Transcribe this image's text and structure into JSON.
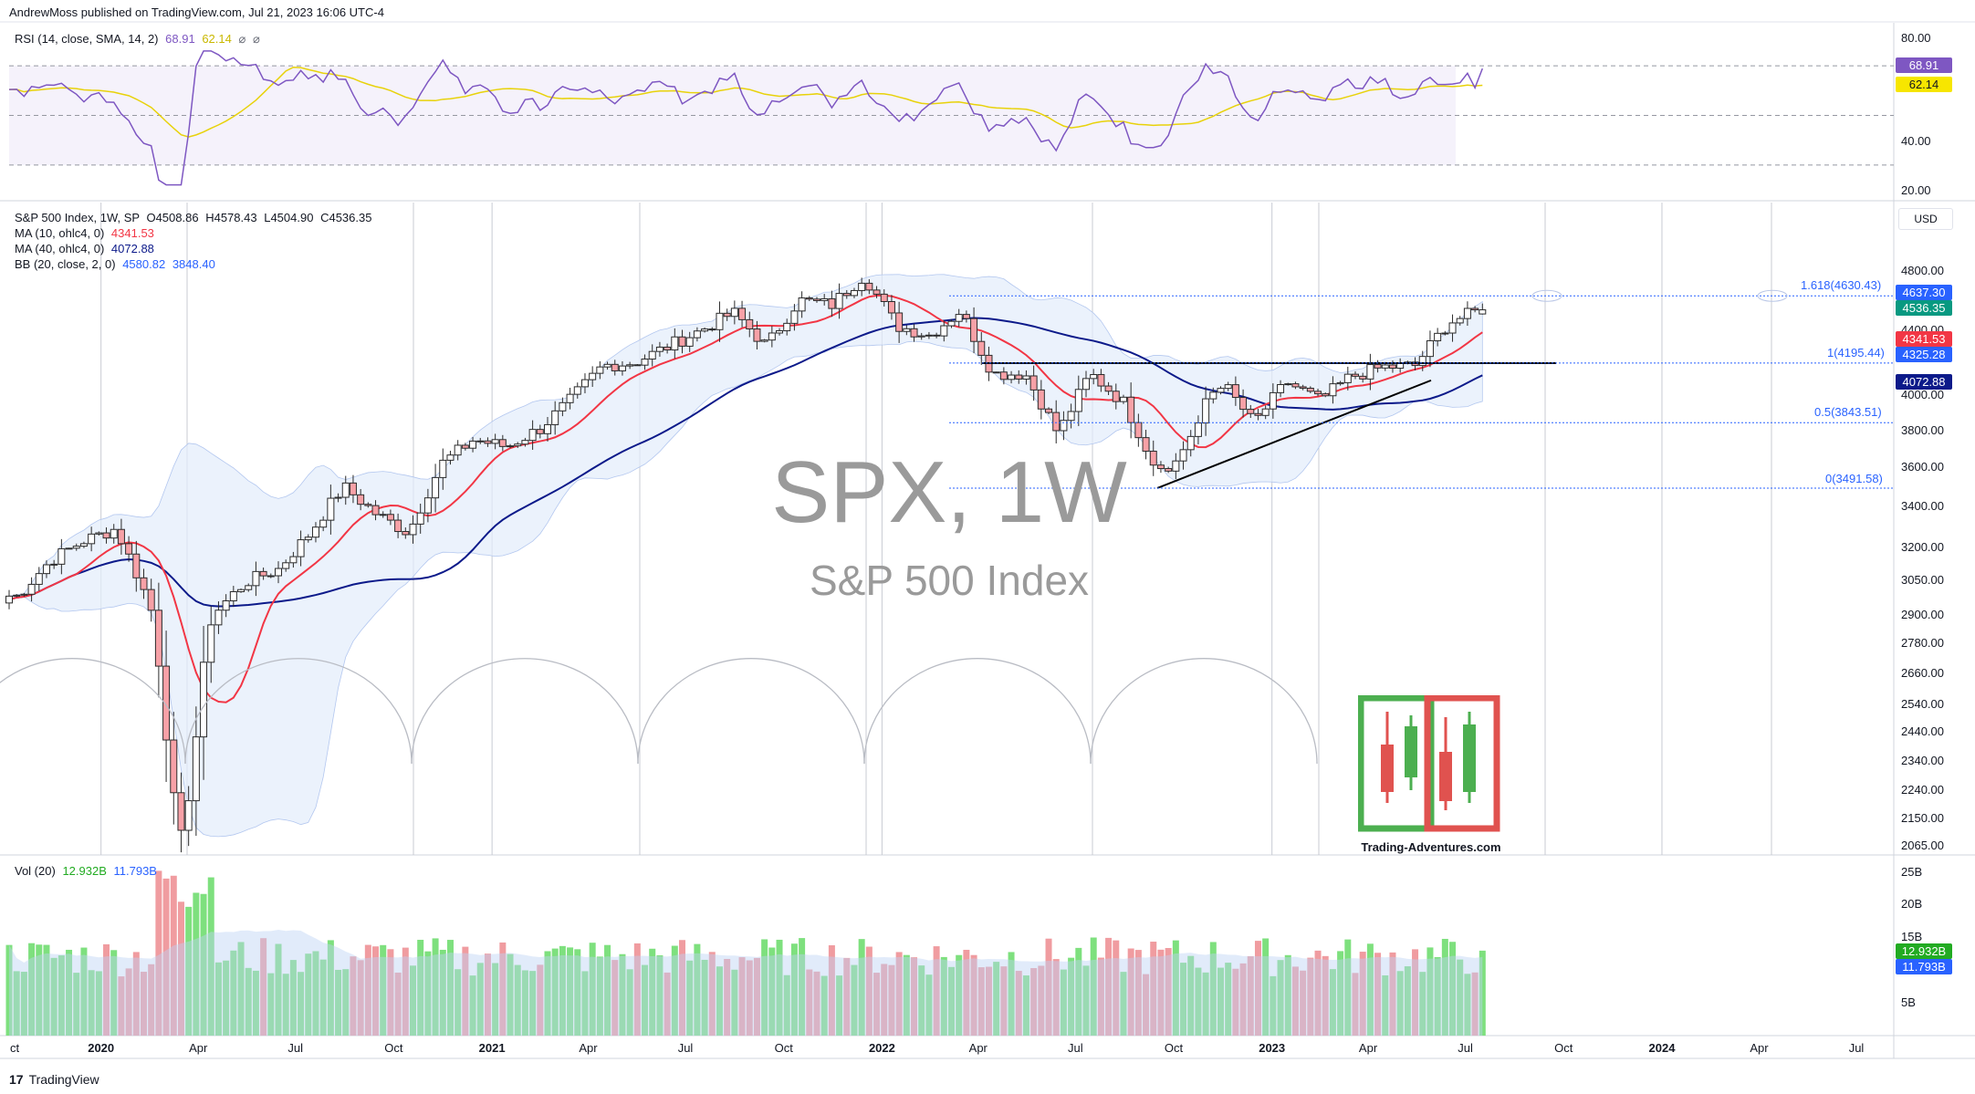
{
  "header": {
    "published_by": "AndrewMoss published on TradingView.com, Jul 21, 2023 16:06 UTC-4"
  },
  "rsi_panel": {
    "label": "RSI (14, close, SMA, 14, 2)",
    "rsi_value": "68.91",
    "sma_value": "62.14",
    "icons": [
      "eye-off-icon",
      "eye-off-icon"
    ],
    "axis_labels": [
      "80.00",
      "40.00",
      "20.00"
    ],
    "tag_rsi": "68.91",
    "tag_sma": "62.14"
  },
  "price_panel": {
    "symbol_line": "S&P 500 Index, 1W, SP",
    "open": "O4508.86",
    "high": "H4578.43",
    "low": "L4504.90",
    "close": "C4536.35",
    "ma10_label": "MA (10, ohlc4, 0)",
    "ma10_value": "4341.53",
    "ma40_label": "MA (40, ohlc4, 0)",
    "ma40_value": "4072.88",
    "bb_label": "BB (20, close, 2, 0)",
    "bb_upper": "4580.82",
    "bb_lower": "3848.40",
    "currency": "USD",
    "axis_labels": [
      "4800.00",
      "4400.00",
      "4000.00",
      "3800.00",
      "3600.00",
      "3400.00",
      "3200.00",
      "3050.00",
      "2900.00",
      "2780.00",
      "2660.00",
      "2540.00",
      "2440.00",
      "2340.00",
      "2240.00",
      "2150.00",
      "2065.00"
    ],
    "tags": [
      {
        "text": "4637.30",
        "color": "#2962ff"
      },
      {
        "text": "4536.35",
        "color": "#089981"
      },
      {
        "text": "4341.53",
        "color": "#f23645"
      },
      {
        "text": "4325.28",
        "color": "#2962ff"
      },
      {
        "text": "4072.88",
        "color": "#0c1a8a"
      }
    ],
    "fib_levels": [
      {
        "label": "1.618(4630.43)",
        "price": 4630.43
      },
      {
        "label": "1(4195.44)",
        "price": 4195.44
      },
      {
        "label": "0.5(3843.51)",
        "price": 3843.51
      },
      {
        "label": "0(3491.58)",
        "price": 3491.58
      }
    ],
    "watermark_title": "SPX, 1W",
    "watermark_subtitle": "S&P 500 Index",
    "logo_caption": "Trading-Adventures.com"
  },
  "volume_panel": {
    "label": "Vol (20)",
    "vol_value": "12.932B",
    "vol_ma_value": "11.793B",
    "axis_labels": [
      "25B",
      "20B",
      "15B",
      "5B"
    ],
    "tag_vol": "12.932B",
    "tag_ma": "11.793B"
  },
  "x_axis": {
    "labels": [
      {
        "text": "ct",
        "year": false
      },
      {
        "text": "2020",
        "year": true
      },
      {
        "text": "Apr",
        "year": false
      },
      {
        "text": "Jul",
        "year": false
      },
      {
        "text": "Oct",
        "year": false
      },
      {
        "text": "2021",
        "year": true
      },
      {
        "text": "Apr",
        "year": false
      },
      {
        "text": "Jul",
        "year": false
      },
      {
        "text": "Oct",
        "year": false
      },
      {
        "text": "2022",
        "year": true
      },
      {
        "text": "Apr",
        "year": false
      },
      {
        "text": "Jul",
        "year": false
      },
      {
        "text": "Oct",
        "year": false
      },
      {
        "text": "2023",
        "year": true
      },
      {
        "text": "Apr",
        "year": false
      },
      {
        "text": "Jul",
        "year": false
      },
      {
        "text": "Oct",
        "year": false
      },
      {
        "text": "2024",
        "year": true
      },
      {
        "text": "Apr",
        "year": false
      },
      {
        "text": "Jul",
        "year": false
      }
    ]
  },
  "footer": {
    "brand": "TradingView"
  },
  "colors": {
    "up": "#089981",
    "down": "#f23645",
    "ma10": "#f23645",
    "ma40": "#0c1a8a",
    "rsi": "#7e57c2",
    "rsi_sma": "#f7e600",
    "vol_up": "#7ee07e",
    "vol_down": "#f09ca0"
  },
  "chart_data": {
    "type": "candlestick",
    "title": "S&P 500 Index, 1W, SP",
    "price_scale": "log",
    "ylim": [
      2065,
      4900
    ],
    "x_start": "2019-10-07",
    "x_end": "2024-08-05",
    "series": [
      {
        "name": "MA (10, ohlc4, 0)",
        "last": 4341.53
      },
      {
        "name": "MA (40, ohlc4, 0)",
        "last": 4072.88
      },
      {
        "name": "BB (20, close, 2, 0)",
        "upper": 4580.82,
        "lower": 3848.4
      }
    ],
    "closes_by_month": [
      {
        "date": "2019-10",
        "close": 2980
      },
      {
        "date": "2019-11",
        "close": 3140
      },
      {
        "date": "2019-12",
        "close": 3230
      },
      {
        "date": "2020-01",
        "close": 3290
      },
      {
        "date": "2020-02",
        "close": 2950
      },
      {
        "date": "2020-03",
        "close": 2500
      },
      {
        "date": "2020-04",
        "close": 2900
      },
      {
        "date": "2020-05",
        "close": 3040
      },
      {
        "date": "2020-06",
        "close": 3100
      },
      {
        "date": "2020-07",
        "close": 3270
      },
      {
        "date": "2020-08",
        "close": 3500
      },
      {
        "date": "2020-09",
        "close": 3360
      },
      {
        "date": "2020-10",
        "close": 3270
      },
      {
        "date": "2020-11",
        "close": 3620
      },
      {
        "date": "2020-12",
        "close": 3750
      },
      {
        "date": "2021-01",
        "close": 3710
      },
      {
        "date": "2021-02",
        "close": 3810
      },
      {
        "date": "2021-03",
        "close": 3970
      },
      {
        "date": "2021-04",
        "close": 4180
      },
      {
        "date": "2021-05",
        "close": 4200
      },
      {
        "date": "2021-06",
        "close": 4300
      },
      {
        "date": "2021-07",
        "close": 4400
      },
      {
        "date": "2021-08",
        "close": 4520
      },
      {
        "date": "2021-09",
        "close": 4300
      },
      {
        "date": "2021-10",
        "close": 4600
      },
      {
        "date": "2021-11",
        "close": 4570
      },
      {
        "date": "2021-12",
        "close": 4770
      },
      {
        "date": "2022-01",
        "close": 4430
      },
      {
        "date": "2022-02",
        "close": 4370
      },
      {
        "date": "2022-03",
        "close": 4530
      },
      {
        "date": "2022-04",
        "close": 4130
      },
      {
        "date": "2022-05",
        "close": 4130
      },
      {
        "date": "2022-06",
        "close": 3780
      },
      {
        "date": "2022-07",
        "close": 4130
      },
      {
        "date": "2022-08",
        "close": 3960
      },
      {
        "date": "2022-09",
        "close": 3590
      },
      {
        "date": "2022-10",
        "close": 3870
      },
      {
        "date": "2022-11",
        "close": 4080
      },
      {
        "date": "2022-12",
        "close": 3840
      },
      {
        "date": "2023-01",
        "close": 4080
      },
      {
        "date": "2023-02",
        "close": 3970
      },
      {
        "date": "2023-03",
        "close": 4110
      },
      {
        "date": "2023-04",
        "close": 4170
      },
      {
        "date": "2023-05",
        "close": 4180
      },
      {
        "date": "2023-06",
        "close": 4450
      },
      {
        "date": "2023-07",
        "close": 4536.35
      }
    ],
    "volume_ylim": [
      0,
      25
    ],
    "volume_unit": "B",
    "volume_last": 12.932,
    "volume_ma_last": 11.793,
    "rsi_ylim": [
      20,
      80
    ],
    "rsi_levels": [
      70,
      50,
      30
    ],
    "rsi_last": 68.91,
    "rsi_sma_last": 62.14,
    "annotations": [
      {
        "type": "horizontal-line",
        "price": 4195
      },
      {
        "type": "trendline",
        "from": {
          "date": "2022-10-10",
          "price": 3491.58
        },
        "to": {
          "date": "2023-06-26",
          "price": 4090
        }
      },
      {
        "type": "fib-extension",
        "levels": [
          0,
          0.5,
          1,
          1.618
        ]
      }
    ]
  }
}
